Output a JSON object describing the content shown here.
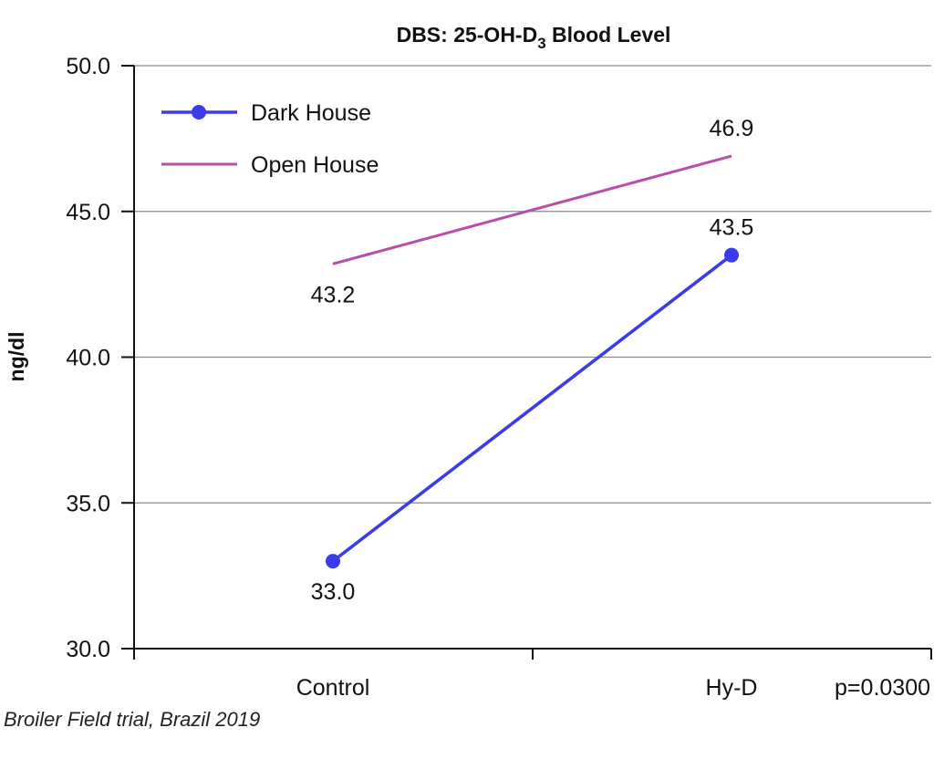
{
  "chart_data": {
    "type": "line",
    "title": "DBS: 25-OH-D",
    "title_subscript": "3",
    "title_suffix": " Blood Level",
    "ylabel": "ng/dl",
    "xlabel": "",
    "categories": [
      "Control",
      "Hy-D"
    ],
    "ylim": [
      30.0,
      50.0
    ],
    "yticks": [
      "30.0",
      "35.0",
      "40.0",
      "45.0",
      "50.0"
    ],
    "grid": true,
    "legend_position": "top-left",
    "annotation": "p=0.0300",
    "series": [
      {
        "name": "Dark House",
        "values": [
          33.0,
          43.5
        ],
        "labels": [
          "33.0",
          "43.5"
        ],
        "color": "#3b3bea",
        "markers": true
      },
      {
        "name": "Open House",
        "values": [
          43.2,
          46.9
        ],
        "labels": [
          "43.2",
          "46.9"
        ],
        "color": "#b94ea8",
        "markers": false
      }
    ]
  },
  "footnote": "Broiler Field trial, Brazil 2019"
}
